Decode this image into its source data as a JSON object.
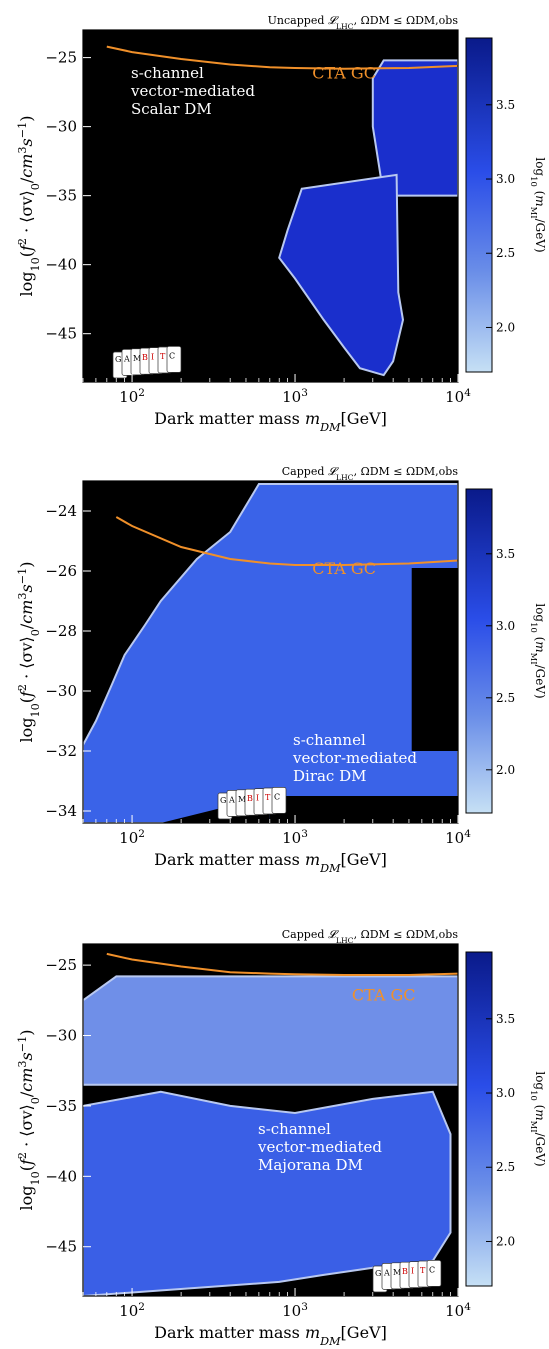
{
  "chart_data": [
    {
      "type": "heatmap",
      "title": "Uncapped 𝓛LHC, ΩDM ≤ ΩDM,obs",
      "xlabel": "Dark matter mass mDM[GeV]",
      "ylabel": "log10(f² · ⟨σv⟩0/cm³s⁻¹)",
      "xscale": "log",
      "xlim": [
        50,
        10000
      ],
      "ylim": [
        -48.5,
        -23
      ],
      "xticks": [
        {
          "v": 100,
          "b": "10",
          "e": "2"
        },
        {
          "v": 1000,
          "b": "10",
          "e": "3"
        },
        {
          "v": 10000,
          "b": "10",
          "e": "4"
        }
      ],
      "yticks": [
        -25,
        -30,
        -35,
        -40,
        -45
      ],
      "colorbar": {
        "label": "log10 (mMI/GeV)",
        "range": [
          1.7,
          3.95
        ],
        "ticks": [
          2.0,
          2.5,
          3.0,
          3.5
        ]
      },
      "annotation": [
        "s-channel",
        "vector-mediated",
        "Scalar DM"
      ],
      "annotation_pos": "top-left",
      "logo_pos": "bottom-left",
      "curve": {
        "name": "CTA GC",
        "x": [
          70,
          100,
          200,
          400,
          700,
          1000,
          2000,
          5000,
          10000
        ],
        "y": [
          -24.2,
          -24.6,
          -25.1,
          -25.5,
          -25.7,
          -25.75,
          -25.8,
          -25.75,
          -25.6
        ]
      },
      "curve_label_at": {
        "x": 2000,
        "y": -26.5
      },
      "regions": [
        {
          "fill": "#1a2fcc",
          "points": [
            [
              3500,
              -25.2
            ],
            [
              10000,
              -25.2
            ],
            [
              10000,
              -35
            ],
            [
              3500,
              -35
            ],
            [
              3000,
              -30
            ],
            [
              3000,
              -26.5
            ]
          ]
        },
        {
          "fill": "#1a2fcc",
          "points": [
            [
              1100,
              -34.5
            ],
            [
              4200,
              -33.5
            ],
            [
              4300,
              -42
            ],
            [
              4600,
              -44
            ],
            [
              4000,
              -47
            ],
            [
              3500,
              -48
            ],
            [
              2500,
              -47.5
            ],
            [
              2000,
              -46
            ],
            [
              1500,
              -44
            ],
            [
              1000,
              -41
            ],
            [
              800,
              -39.5
            ],
            [
              900,
              -37.5
            ]
          ]
        }
      ]
    },
    {
      "type": "heatmap",
      "title": "Capped 𝓛LHC, ΩDM ≤ ΩDM,obs",
      "xlabel": "Dark matter mass mDM[GeV]",
      "ylabel": "log10(f² · ⟨σv⟩0/cm³s⁻¹)",
      "xscale": "log",
      "xlim": [
        50,
        10000
      ],
      "ylim": [
        -34.4,
        -23
      ],
      "xticks": [
        {
          "v": 100,
          "b": "10",
          "e": "2"
        },
        {
          "v": 1000,
          "b": "10",
          "e": "3"
        },
        {
          "v": 10000,
          "b": "10",
          "e": "4"
        }
      ],
      "yticks": [
        -24,
        -26,
        -28,
        -30,
        -32,
        -34
      ],
      "colorbar": {
        "label": "log10 (mMI/GeV)",
        "range": [
          1.7,
          3.95
        ],
        "ticks": [
          2.0,
          2.5,
          3.0,
          3.5
        ]
      },
      "annotation": [
        "s-channel",
        "vector-mediated",
        "Dirac DM"
      ],
      "annotation_pos": "bottom-right",
      "logo_pos": "bottom-center",
      "curve": {
        "name": "CTA GC",
        "x": [
          80,
          100,
          200,
          400,
          700,
          1000,
          2000,
          5000,
          10000
        ],
        "y": [
          -24.2,
          -24.5,
          -25.2,
          -25.6,
          -25.75,
          -25.8,
          -25.8,
          -25.75,
          -25.65
        ]
      },
      "curve_label_at": {
        "x": 2000,
        "y": -26.1
      },
      "regions": [
        {
          "fill": "#3a63e8",
          "points": [
            [
              50,
              -34.4
            ],
            [
              10000,
              -34.4
            ],
            [
              10000,
              -23.1
            ],
            [
              600,
              -23.1
            ],
            [
              400,
              -24.7
            ],
            [
              250,
              -25.6
            ],
            [
              150,
              -27
            ],
            [
              120,
              -27.8
            ],
            [
              90,
              -28.8
            ],
            [
              75,
              -29.8
            ],
            [
              60,
              -31
            ],
            [
              50,
              -31.8
            ]
          ]
        },
        {
          "fill": "#000000",
          "points": [
            [
              700,
              -33.5
            ],
            [
              10000,
              -33.5
            ],
            [
              10000,
              -34.4
            ],
            [
              700,
              -34.4
            ]
          ]
        },
        {
          "fill": "#000000",
          "points": [
            [
              150,
              -34.4
            ],
            [
              700,
              -33.5
            ],
            [
              700,
              -34.4
            ]
          ]
        },
        {
          "fill": "#000000",
          "points": [
            [
              5200,
              -25.9
            ],
            [
              10000,
              -25.9
            ],
            [
              10000,
              -32
            ],
            [
              5200,
              -32
            ]
          ]
        }
      ]
    },
    {
      "type": "heatmap",
      "title": "Capped 𝓛LHC, ΩDM ≤ ΩDM,obs",
      "xlabel": "Dark matter mass mDM[GeV]",
      "ylabel": "log10(f² · ⟨σv⟩0/cm³s⁻¹)",
      "xscale": "log",
      "xlim": [
        50,
        10000
      ],
      "ylim": [
        -48.5,
        -23.5
      ],
      "xticks": [
        {
          "v": 100,
          "b": "10",
          "e": "2"
        },
        {
          "v": 1000,
          "b": "10",
          "e": "3"
        },
        {
          "v": 10000,
          "b": "10",
          "e": "4"
        }
      ],
      "yticks": [
        -25,
        -30,
        -35,
        -40,
        -45
      ],
      "colorbar": {
        "label": "log10 (mMI/GeV)",
        "range": [
          1.7,
          3.95
        ],
        "ticks": [
          2.0,
          2.5,
          3.0,
          3.5
        ]
      },
      "annotation": [
        "s-channel",
        "vector-mediated",
        "Majorana DM"
      ],
      "annotation_pos": "middle-right",
      "logo_pos": "bottom-right",
      "curve": {
        "name": "CTA GC",
        "x": [
          70,
          100,
          200,
          400,
          700,
          1000,
          2000,
          5000,
          10000
        ],
        "y": [
          -24.2,
          -24.6,
          -25.1,
          -25.5,
          -25.6,
          -25.65,
          -25.7,
          -25.7,
          -25.6
        ]
      },
      "curve_label_at": {
        "x": 3500,
        "y": -27.5
      },
      "regions": [
        {
          "fill": "#6f8fe8",
          "points": [
            [
              50,
              -27.5
            ],
            [
              80,
              -25.8
            ],
            [
              10000,
              -25.8
            ],
            [
              10000,
              -33.5
            ],
            [
              50,
              -33.5
            ]
          ]
        },
        {
          "fill": "#3a5fe6",
          "points": [
            [
              50,
              -35
            ],
            [
              150,
              -34
            ],
            [
              400,
              -35
            ],
            [
              1000,
              -35.5
            ],
            [
              3000,
              -34.5
            ],
            [
              7000,
              -34
            ],
            [
              9000,
              -37
            ],
            [
              9000,
              -44
            ],
            [
              7000,
              -46
            ],
            [
              3000,
              -46.5
            ],
            [
              1500,
              -47
            ],
            [
              800,
              -47.5
            ],
            [
              50,
              -48.5
            ]
          ]
        }
      ]
    }
  ]
}
